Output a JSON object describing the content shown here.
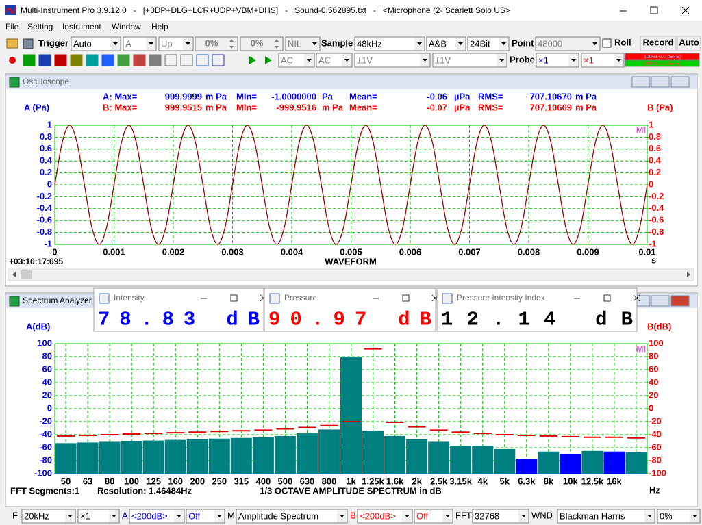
{
  "window": {
    "title": "Multi-Instrument Pro 3.9.12.0   -   [+3DP+DLG+LCR+UDP+VBM+DHS]   -   Sound-0.562895.txt   -   <Microphone (2- Scarlett Solo US>",
    "menu": [
      "File",
      "Setting",
      "Instrument",
      "Window",
      "Help"
    ]
  },
  "toolbar1": {
    "trigger": "Trigger",
    "trigger_mode": "Auto",
    "trigger_channel": "A",
    "trigger_edge": "Up",
    "level1": "0%",
    "level2": "0%",
    "nil": "NIL",
    "sample_label": "Sample",
    "sample": "48kHz",
    "channels": "A&B",
    "bits": "24Bit",
    "point_label": "Point",
    "points": "48000",
    "roll": "Roll",
    "record": "Record",
    "auto": "Auto"
  },
  "toolbar2": {
    "coupling_a": "AC",
    "coupling_b": "AC",
    "range_a": "±1V",
    "range_b": "±1V",
    "probe_label": "Probe",
    "probe_a": "×1",
    "probe_b": "×1",
    "level_a": "100%(-0.0 dBFS)",
    "level_b": "100%(-0.0 dBFS)"
  },
  "oscilloscope": {
    "title": "Oscilloscope",
    "stats": [
      {
        "color": "#0000ff",
        "cells": [
          "A: Max=",
          "999.9999",
          "m Pa",
          "MIn=",
          "-1.0000000",
          "Pa",
          "Mean=",
          "-0.06",
          "µPa",
          "RMS=",
          "707.10670",
          "m Pa"
        ]
      },
      {
        "color": "#ff0000",
        "cells": [
          "B: Max=",
          "999.9515",
          "m Pa",
          "MIn=",
          "-999.9516",
          "m Pa",
          "Mean=",
          "-0.07",
          "µPa",
          "RMS=",
          "707.10669",
          "m Pa"
        ]
      }
    ],
    "chart_data": {
      "type": "line",
      "y_label": "A (Pa)",
      "y2_label": "B (Pa)",
      "x_label": "WAVEFORM",
      "x_unit": "s",
      "timestamp": "+03:16:17:695",
      "logo": "MI",
      "x": [
        0,
        0.000125,
        0.00025,
        0.000375,
        0.0005,
        0.000625,
        0.00075,
        0.000875,
        0.001,
        0.001125,
        0.00125,
        0.001375,
        0.0015,
        0.001625,
        0.00175,
        0.001875,
        0.002,
        0.002125,
        0.00225,
        0.002375,
        0.0025,
        0.002625,
        0.00275,
        0.002875,
        0.003,
        0.003125,
        0.00325,
        0.003375,
        0.0035,
        0.003625,
        0.00375,
        0.003875,
        0.004,
        0.004125,
        0.00425,
        0.004375,
        0.0045,
        0.004625,
        0.00475,
        0.004875,
        0.005,
        0.005125,
        0.00525,
        0.005375,
        0.0055,
        0.005625,
        0.00575,
        0.005875,
        0.006,
        0.006125,
        0.00625,
        0.006375,
        0.0065,
        0.006625,
        0.00675,
        0.006875,
        0.007,
        0.007125,
        0.00725,
        0.007375,
        0.0075,
        0.007625,
        0.00775,
        0.007875,
        0.008,
        0.008125,
        0.00825,
        0.008375,
        0.0085,
        0.008625,
        0.00875,
        0.008875,
        0.009,
        0.009125,
        0.00925,
        0.009375,
        0.0095,
        0.009625,
        0.00975,
        0.009875,
        0.01
      ],
      "series": [
        {
          "color": "#a00000",
          "values": [
            0,
            0.71,
            1,
            0.71,
            0,
            -0.71,
            -1,
            -0.71,
            0,
            0.71,
            1,
            0.71,
            0,
            -0.71,
            -1,
            -0.71,
            0,
            0.71,
            1,
            0.71,
            0,
            -0.71,
            -1,
            -0.71,
            0,
            0.71,
            1,
            0.71,
            0,
            -0.71,
            -1,
            -0.71,
            0,
            0.71,
            1,
            0.71,
            0,
            -0.71,
            -1,
            -0.71,
            0,
            0.71,
            1,
            0.71,
            0,
            -0.71,
            -1,
            -0.71,
            0,
            0.71,
            1,
            0.71,
            0,
            -0.71,
            -1,
            -0.71,
            0,
            0.71,
            1,
            0.71,
            0,
            -0.71,
            -1,
            -0.71,
            0,
            0.71,
            1,
            0.71,
            0,
            -0.71,
            -1,
            -0.71,
            0,
            0.71,
            1,
            0.71,
            0,
            -0.71,
            -1,
            -0.71,
            0
          ]
        }
      ],
      "xlim": [
        0,
        0.01
      ],
      "xticks": [
        0,
        0.001,
        0.002,
        0.003,
        0.004,
        0.005,
        0.006,
        0.007,
        0.008,
        0.009,
        0.01
      ],
      "ylim": [
        -1,
        1
      ],
      "yticks": [
        1,
        0.8,
        0.6,
        0.4,
        0.2,
        0,
        -0.2,
        -0.4,
        -0.6,
        -0.8,
        -1
      ],
      "y2lim": [
        -1,
        1
      ],
      "y2ticks": [
        1,
        0.8,
        0.6,
        0.4,
        0.2,
        0,
        -0.2,
        -0.4,
        -0.6,
        -0.8,
        -1
      ],
      "grid": true,
      "grid_color": "#00c000"
    }
  },
  "spectrum": {
    "title": "Spectrum Analyzer",
    "chart_data": {
      "type": "bar",
      "title": "1/3 OCTAVE AMPLITUDE SPECTRUM in dB",
      "y_label": "A(dB)",
      "y2_label": "B(dB)",
      "x_unit": "Hz",
      "segments": "FFT Segments:1",
      "resolution": "Resolution: 1.46484Hz",
      "logo": "MI",
      "categories": [
        "50",
        "63",
        "80",
        "100",
        "125",
        "160",
        "200",
        "250",
        "315",
        "400",
        "500",
        "630",
        "800",
        "1k",
        "1.25k",
        "1.6k",
        "2k",
        "2.5k",
        "3.15k",
        "4k",
        "5k",
        "6.3k",
        "8k",
        "10k",
        "12.5k",
        "16k",
        null
      ],
      "values": [
        -53,
        -52,
        -51,
        -50,
        -49,
        -48,
        -47,
        -46,
        -45,
        -44,
        -42,
        -38,
        -32,
        80,
        -34,
        -42,
        -47,
        -51,
        -57,
        -57,
        -62,
        -77,
        -66,
        -70,
        -65,
        -66,
        -67
      ],
      "colors": [
        "#008080",
        "#008080",
        "#008080",
        "#008080",
        "#008080",
        "#008080",
        "#008080",
        "#008080",
        "#008080",
        "#008080",
        "#008080",
        "#008080",
        "#008080",
        "#008080",
        "#008080",
        "#008080",
        "#008080",
        "#008080",
        "#008080",
        "#008080",
        "#008080",
        "#0000ff",
        "#008080",
        "#0000ff",
        "#008080",
        "#0000ff",
        "#008080"
      ],
      "peak_hold": {
        "color": "#e00000",
        "values": [
          -42,
          -41,
          -40,
          -39,
          -38,
          -37,
          -36,
          -35,
          -34,
          -33,
          -31,
          -29,
          -26,
          -20,
          92,
          -21,
          -28,
          -33,
          -36,
          -38,
          -40,
          -41,
          -42,
          -43,
          -44,
          -44,
          -45
        ]
      },
      "ylim": [
        -100,
        100
      ],
      "yticks": [
        100,
        80,
        60,
        40,
        20,
        0,
        -20,
        -40,
        -60,
        -80,
        -100
      ],
      "y2lim": [
        -100,
        100
      ],
      "y2ticks": [
        100,
        80,
        60,
        40,
        20,
        0,
        -20,
        -40,
        -60,
        -80,
        -100
      ],
      "grid": true,
      "grid_color": "#00c000"
    }
  },
  "meters": [
    {
      "title": "Intensity",
      "reading": "78.83 dB",
      "color": "#0000ff"
    },
    {
      "title": "Pressure",
      "reading": "90.97 dB",
      "color": "#ff0000"
    },
    {
      "title": "Pressure Intensity Index",
      "reading": "12.14 dB",
      "color": "#000000"
    }
  ],
  "bottom": {
    "f_label": "F",
    "f": "20kHz",
    "mult": "×1",
    "a_label": "A",
    "a_range": "<200dB>",
    "a_off": "Off",
    "m_label": "M",
    "mode": "Amplitude Spectrum",
    "b_label": "B",
    "b_range": "<200dB>",
    "b_off": "Off",
    "fft_label": "FFT",
    "fft": "32768",
    "wnd_label": "WND",
    "window": "Blackman Harris",
    "overlap": "0%"
  }
}
